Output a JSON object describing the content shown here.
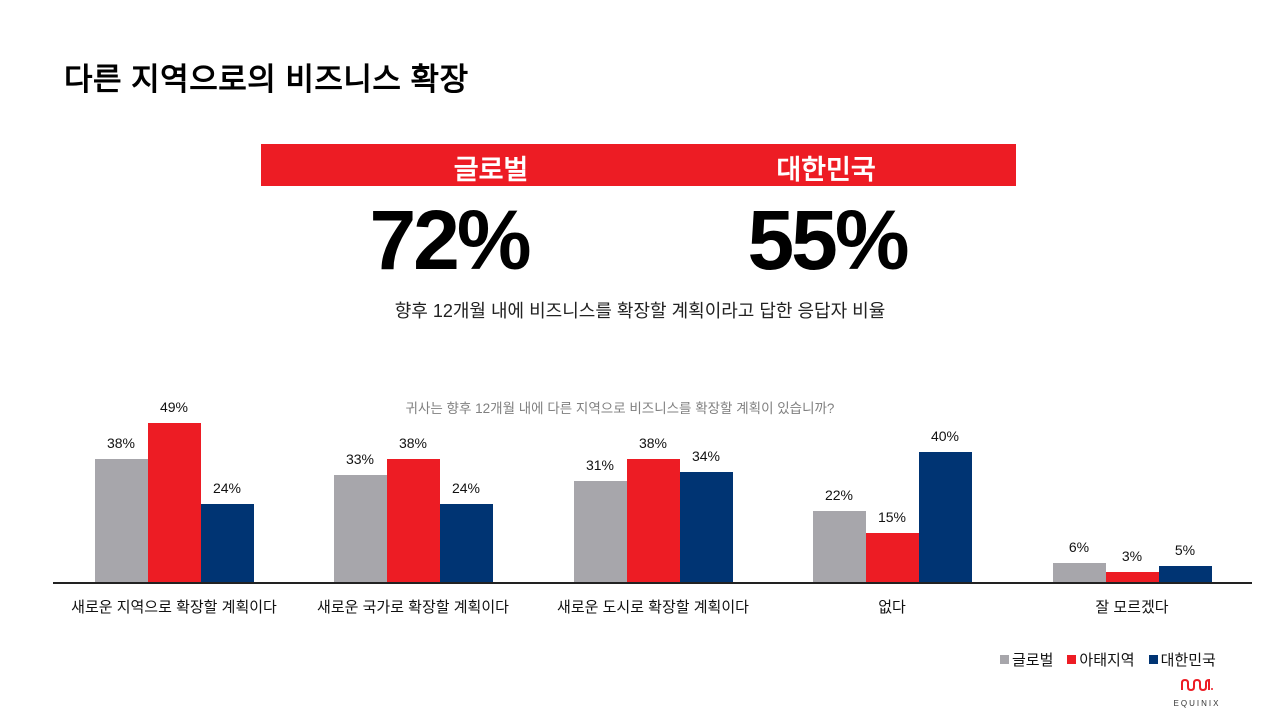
{
  "slide": {
    "title": "다른 지역으로의 비즈니스 확장",
    "banner": {
      "color": "#ed1c24",
      "left_label": "글로벌",
      "right_label": "대한민국"
    },
    "headline": {
      "global_value": "72%",
      "korea_value": "55%"
    },
    "subtitle": "향후 12개월 내에 비즈니스를 확장할 계획이라고 답한 응답자 비율",
    "question": "귀사는 향후 12개월 내에 다른 지역으로 비즈니스를 확장할 계획이 있습니까?",
    "logo": {
      "text": "EQUINIX",
      "icon": "equinix-logo-icon"
    }
  },
  "chart_data": {
    "type": "bar",
    "title": "귀사는 향후 12개월 내에 다른 지역으로 비즈니스를 확장할 계획이 있습니까?",
    "xlabel": "",
    "ylabel": "",
    "ylim": [
      0,
      50
    ],
    "grid": false,
    "legend_position": "bottom-right",
    "categories": [
      "새로운 지역으로 확장할 계획이다",
      "새로운 국가로 확장할 계획이다",
      "새로운 도시로 확장할 계획이다",
      "없다",
      "잘 모르겠다"
    ],
    "series": [
      {
        "name": "글로벌",
        "color": "#a7a6ab",
        "values": [
          38,
          33,
          31,
          22,
          6
        ],
        "labels": [
          "38%",
          "33%",
          "31%",
          "22%",
          "6%"
        ]
      },
      {
        "name": "아태지역",
        "color": "#ed1c24",
        "values": [
          49,
          38,
          38,
          15,
          3
        ],
        "labels": [
          "49%",
          "38%",
          "38%",
          "15%",
          "3%"
        ]
      },
      {
        "name": "대한민국",
        "color": "#003473",
        "values": [
          24,
          24,
          34,
          40,
          5
        ],
        "labels": [
          "24%",
          "24%",
          "34%",
          "40%",
          "5%"
        ]
      }
    ]
  }
}
